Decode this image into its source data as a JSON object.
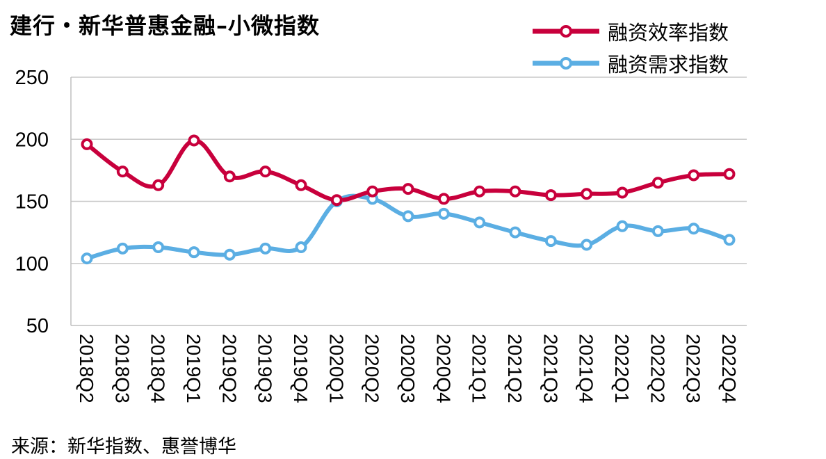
{
  "title": "建行・新华普惠金融–小微指数",
  "source": "来源：新华指数、惠誉博华",
  "chart_data": {
    "type": "line",
    "title": "建行・新华普惠金融–小微指数",
    "categories": [
      "2018Q2",
      "2018Q3",
      "2018Q4",
      "2019Q1",
      "2019Q2",
      "2019Q3",
      "2019Q4",
      "2020Q1",
      "2020Q2",
      "2020Q3",
      "2020Q4",
      "2021Q1",
      "2021Q2",
      "2021Q3",
      "2021Q4",
      "2022Q1",
      "2022Q2",
      "2022Q3",
      "2022Q4"
    ],
    "series": [
      {
        "name": "融资效率指数",
        "color": "#C8003C",
        "values": [
          196,
          174,
          163,
          199,
          170,
          174,
          163,
          151,
          158,
          160,
          152,
          158,
          158,
          155,
          156,
          157,
          165,
          171,
          172
        ]
      },
      {
        "name": "融资需求指数",
        "color": "#5BAEE3",
        "values": [
          104,
          112,
          113,
          109,
          107,
          112,
          113,
          150,
          152,
          138,
          140,
          133,
          125,
          118,
          115,
          130,
          126,
          128,
          119
        ]
      }
    ],
    "ylim": [
      50,
      250
    ],
    "yticks": [
      50,
      100,
      150,
      200,
      250
    ],
    "xlabel": "",
    "ylabel": "",
    "grid": "horizontal",
    "legend_position": "top-right",
    "xtick_rotation": "90"
  }
}
